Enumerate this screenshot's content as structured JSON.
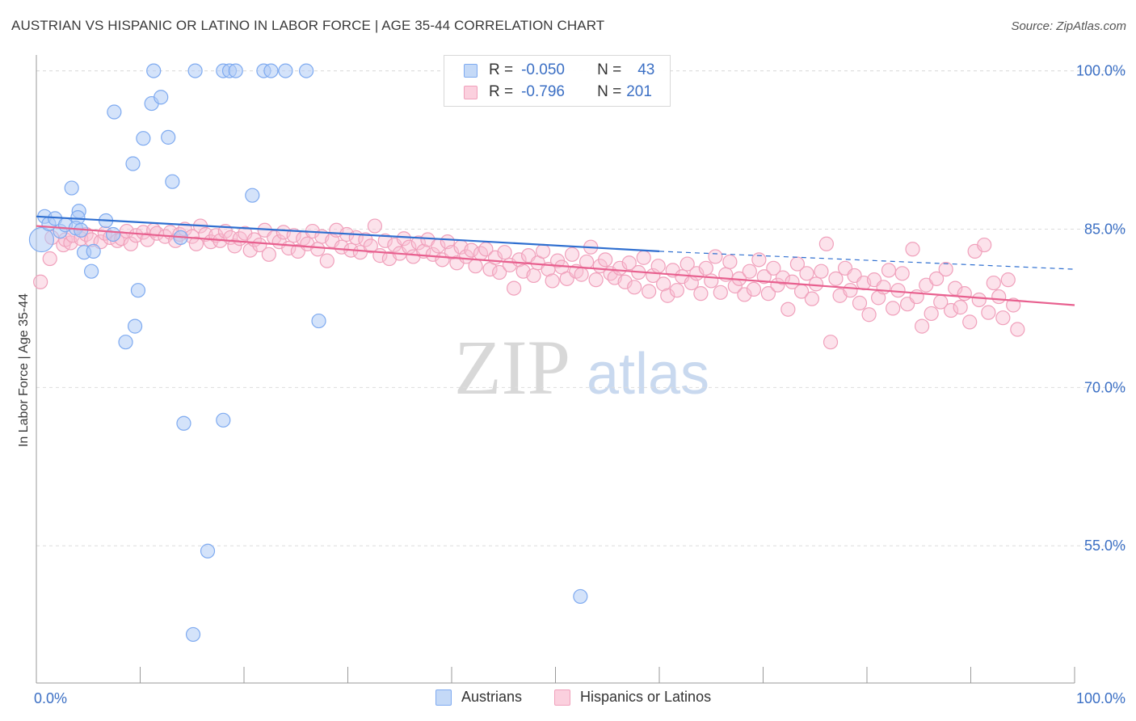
{
  "title": "AUSTRIAN VS HISPANIC OR LATINO IN LABOR FORCE | AGE 35-44 CORRELATION CHART",
  "source": "Source: ZipAtlas.com",
  "watermark": {
    "zip": "ZIP",
    "atlas": "atlas"
  },
  "stats": [
    {
      "r_label": "R =",
      "r_value": "-0.050",
      "n_label": "N =",
      "n_value": "43",
      "color": "#7eaaf0"
    },
    {
      "r_label": "R =",
      "r_value": "-0.796",
      "n_label": "N =",
      "n_value": "201",
      "color": "#f0a0bb"
    }
  ],
  "legend": [
    {
      "label": "Austrians",
      "color": "#7eaaf0"
    },
    {
      "label": "Hispanics or Latinos",
      "color": "#f0a0bb"
    }
  ],
  "chart_data": {
    "type": "scatter",
    "title": "AUSTRIAN VS HISPANIC OR LATINO IN LABOR FORCE | AGE 35-44 CORRELATION CHART",
    "xlabel": "",
    "ylabel": "In Labor Force | Age 35-44",
    "xlim": [
      0,
      100
    ],
    "ylim": [
      42,
      101.5
    ],
    "x_tick_labels": [
      "0.0%",
      "100.0%"
    ],
    "y_ticks": [
      55,
      70,
      85,
      100
    ],
    "y_tick_labels": [
      "55.0%",
      "70.0%",
      "85.0%",
      "100.0%"
    ],
    "grid": true,
    "legend_position": "bottom-center",
    "series": [
      {
        "name": "Austrians",
        "color": "#7eaaf0",
        "trend": {
          "x": [
            0,
            60
          ],
          "y": [
            86.2,
            82.9
          ],
          "dash_to": [
            100,
            81.2
          ]
        },
        "points": [
          [
            0.5,
            84.0
          ],
          [
            0.8,
            86.2
          ],
          [
            1.2,
            85.5
          ],
          [
            1.8,
            86.0
          ],
          [
            2.3,
            84.8
          ],
          [
            2.8,
            85.4
          ],
          [
            4.1,
            86.7
          ],
          [
            3.4,
            88.9
          ],
          [
            4.0,
            86.1
          ],
          [
            3.8,
            85.1
          ],
          [
            4.3,
            84.9
          ],
          [
            4.6,
            82.8
          ],
          [
            5.3,
            81.0
          ],
          [
            5.5,
            82.9
          ],
          [
            6.7,
            85.8
          ],
          [
            7.4,
            84.5
          ],
          [
            7.5,
            96.1
          ],
          [
            8.6,
            74.3
          ],
          [
            9.3,
            91.2
          ],
          [
            9.5,
            75.8
          ],
          [
            9.8,
            79.2
          ],
          [
            10.3,
            93.6
          ],
          [
            11.1,
            96.9
          ],
          [
            12.0,
            97.5
          ],
          [
            12.7,
            93.7
          ],
          [
            13.1,
            89.5
          ],
          [
            13.9,
            84.2
          ],
          [
            14.2,
            66.6
          ],
          [
            11.3,
            100.0
          ],
          [
            15.3,
            100.0
          ],
          [
            15.1,
            46.6
          ],
          [
            16.5,
            54.5
          ],
          [
            18.0,
            100.0
          ],
          [
            18.6,
            100.0
          ],
          [
            19.2,
            100.0
          ],
          [
            18.0,
            66.9
          ],
          [
            20.8,
            88.2
          ],
          [
            21.9,
            100.0
          ],
          [
            22.6,
            100.0
          ],
          [
            24.0,
            100.0
          ],
          [
            26.0,
            100.0
          ],
          [
            27.2,
            76.3
          ],
          [
            52.4,
            50.2
          ]
        ]
      },
      {
        "name": "Hispanics or Latinos",
        "color": "#f0a0bb",
        "trend": {
          "x": [
            0,
            100
          ],
          "y": [
            85.3,
            77.8
          ]
        },
        "points": [
          [
            0.4,
            80.0
          ],
          [
            1.3,
            82.2
          ],
          [
            1.5,
            84.2
          ],
          [
            2.6,
            83.5
          ],
          [
            2.8,
            84.0
          ],
          [
            3.3,
            83.7
          ],
          [
            3.5,
            84.4
          ],
          [
            4.3,
            84.1
          ],
          [
            4.8,
            84.5
          ],
          [
            5.3,
            84.0
          ],
          [
            6.2,
            83.8
          ],
          [
            6.6,
            84.6
          ],
          [
            7.1,
            84.2
          ],
          [
            7.8,
            83.9
          ],
          [
            8.2,
            84.1
          ],
          [
            8.7,
            84.8
          ],
          [
            9.1,
            83.6
          ],
          [
            9.6,
            84.4
          ],
          [
            10.3,
            84.7
          ],
          [
            10.7,
            84.0
          ],
          [
            11.3,
            84.9
          ],
          [
            11.6,
            84.6
          ],
          [
            12.4,
            84.3
          ],
          [
            12.9,
            84.7
          ],
          [
            13.4,
            83.9
          ],
          [
            13.8,
            84.5
          ],
          [
            14.3,
            85.0
          ],
          [
            15.0,
            84.3
          ],
          [
            15.4,
            83.6
          ],
          [
            15.8,
            85.3
          ],
          [
            16.3,
            84.5
          ],
          [
            16.8,
            83.8
          ],
          [
            17.3,
            84.4
          ],
          [
            17.7,
            83.9
          ],
          [
            18.2,
            84.8
          ],
          [
            18.7,
            84.2
          ],
          [
            19.1,
            83.4
          ],
          [
            19.6,
            84.1
          ],
          [
            20.1,
            84.6
          ],
          [
            20.6,
            83.0
          ],
          [
            21.0,
            84.0
          ],
          [
            21.5,
            83.5
          ],
          [
            22.0,
            84.9
          ],
          [
            22.4,
            82.6
          ],
          [
            22.9,
            84.2
          ],
          [
            23.4,
            83.8
          ],
          [
            23.8,
            84.7
          ],
          [
            24.3,
            83.2
          ],
          [
            24.8,
            84.4
          ],
          [
            25.2,
            82.9
          ],
          [
            25.7,
            84.1
          ],
          [
            26.1,
            83.6
          ],
          [
            26.6,
            84.8
          ],
          [
            27.1,
            83.1
          ],
          [
            27.5,
            84.3
          ],
          [
            28.0,
            82.0
          ],
          [
            28.5,
            83.9
          ],
          [
            28.9,
            84.9
          ],
          [
            29.4,
            83.3
          ],
          [
            29.9,
            84.5
          ],
          [
            30.3,
            83.0
          ],
          [
            30.8,
            84.2
          ],
          [
            31.2,
            82.8
          ],
          [
            31.7,
            84.0
          ],
          [
            32.2,
            83.4
          ],
          [
            32.6,
            85.3
          ],
          [
            33.1,
            82.5
          ],
          [
            33.6,
            83.9
          ],
          [
            34.0,
            82.2
          ],
          [
            34.5,
            83.5
          ],
          [
            35.0,
            82.7
          ],
          [
            35.4,
            84.1
          ],
          [
            35.9,
            83.3
          ],
          [
            36.3,
            82.4
          ],
          [
            36.8,
            83.7
          ],
          [
            37.3,
            82.9
          ],
          [
            37.7,
            84.0
          ],
          [
            38.2,
            82.6
          ],
          [
            38.7,
            83.4
          ],
          [
            39.1,
            82.1
          ],
          [
            39.6,
            83.8
          ],
          [
            40.0,
            82.8
          ],
          [
            40.5,
            81.8
          ],
          [
            40.9,
            83.3
          ],
          [
            41.4,
            82.4
          ],
          [
            41.9,
            83.0
          ],
          [
            42.3,
            81.5
          ],
          [
            42.8,
            82.7
          ],
          [
            43.3,
            83.1
          ],
          [
            43.7,
            81.2
          ],
          [
            44.2,
            82.3
          ],
          [
            44.6,
            80.9
          ],
          [
            45.1,
            82.8
          ],
          [
            45.6,
            81.6
          ],
          [
            46.0,
            79.4
          ],
          [
            46.5,
            82.1
          ],
          [
            46.9,
            81.0
          ],
          [
            47.4,
            82.5
          ],
          [
            47.9,
            80.6
          ],
          [
            48.3,
            81.8
          ],
          [
            48.8,
            82.9
          ],
          [
            49.3,
            81.2
          ],
          [
            49.7,
            80.1
          ],
          [
            50.2,
            82.0
          ],
          [
            50.6,
            81.4
          ],
          [
            51.1,
            80.3
          ],
          [
            51.6,
            82.6
          ],
          [
            52.0,
            81.0
          ],
          [
            52.5,
            80.7
          ],
          [
            53.0,
            81.9
          ],
          [
            53.4,
            83.3
          ],
          [
            53.9,
            80.2
          ],
          [
            54.3,
            81.5
          ],
          [
            54.8,
            82.1
          ],
          [
            55.3,
            80.8
          ],
          [
            55.7,
            80.4
          ],
          [
            56.2,
            81.3
          ],
          [
            56.7,
            80.0
          ],
          [
            57.1,
            81.8
          ],
          [
            57.6,
            79.5
          ],
          [
            58.0,
            80.9
          ],
          [
            58.5,
            82.3
          ],
          [
            59.0,
            79.1
          ],
          [
            59.4,
            80.6
          ],
          [
            59.9,
            81.5
          ],
          [
            60.4,
            79.8
          ],
          [
            60.8,
            78.7
          ],
          [
            61.3,
            81.1
          ],
          [
            61.7,
            79.2
          ],
          [
            62.2,
            80.5
          ],
          [
            62.7,
            81.7
          ],
          [
            63.1,
            79.9
          ],
          [
            63.6,
            80.8
          ],
          [
            64.0,
            78.9
          ],
          [
            64.5,
            81.3
          ],
          [
            65.0,
            80.1
          ],
          [
            65.4,
            82.4
          ],
          [
            65.9,
            79.0
          ],
          [
            66.4,
            80.7
          ],
          [
            66.8,
            81.9
          ],
          [
            67.3,
            79.6
          ],
          [
            67.7,
            80.3
          ],
          [
            68.2,
            78.8
          ],
          [
            68.7,
            81.0
          ],
          [
            69.1,
            79.3
          ],
          [
            69.6,
            82.1
          ],
          [
            70.1,
            80.5
          ],
          [
            70.5,
            78.9
          ],
          [
            71.0,
            81.3
          ],
          [
            71.4,
            79.7
          ],
          [
            71.9,
            80.4
          ],
          [
            72.4,
            77.4
          ],
          [
            72.8,
            80.0
          ],
          [
            73.3,
            81.7
          ],
          [
            73.7,
            79.1
          ],
          [
            74.2,
            80.8
          ],
          [
            74.7,
            78.4
          ],
          [
            75.1,
            79.8
          ],
          [
            75.6,
            81.0
          ],
          [
            76.1,
            83.6
          ],
          [
            76.5,
            74.3
          ],
          [
            77.0,
            80.3
          ],
          [
            77.4,
            78.7
          ],
          [
            77.9,
            81.3
          ],
          [
            78.4,
            79.2
          ],
          [
            78.8,
            80.6
          ],
          [
            79.3,
            78.0
          ],
          [
            79.7,
            79.9
          ],
          [
            80.2,
            76.9
          ],
          [
            80.7,
            80.2
          ],
          [
            81.1,
            78.5
          ],
          [
            81.6,
            79.5
          ],
          [
            82.1,
            81.1
          ],
          [
            82.5,
            77.5
          ],
          [
            83.0,
            79.2
          ],
          [
            83.4,
            80.8
          ],
          [
            83.9,
            77.9
          ],
          [
            84.4,
            83.1
          ],
          [
            84.8,
            78.6
          ],
          [
            85.3,
            75.8
          ],
          [
            85.7,
            79.7
          ],
          [
            86.2,
            77.0
          ],
          [
            86.7,
            80.3
          ],
          [
            87.1,
            78.1
          ],
          [
            87.6,
            81.2
          ],
          [
            88.1,
            77.3
          ],
          [
            88.5,
            79.4
          ],
          [
            89.0,
            77.6
          ],
          [
            89.4,
            78.9
          ],
          [
            89.9,
            76.2
          ],
          [
            90.4,
            82.9
          ],
          [
            90.8,
            78.3
          ],
          [
            91.3,
            83.5
          ],
          [
            91.7,
            77.1
          ],
          [
            92.2,
            79.9
          ],
          [
            92.7,
            78.6
          ],
          [
            93.1,
            76.6
          ],
          [
            93.6,
            80.2
          ],
          [
            94.1,
            77.8
          ],
          [
            94.5,
            75.5
          ]
        ]
      }
    ]
  }
}
